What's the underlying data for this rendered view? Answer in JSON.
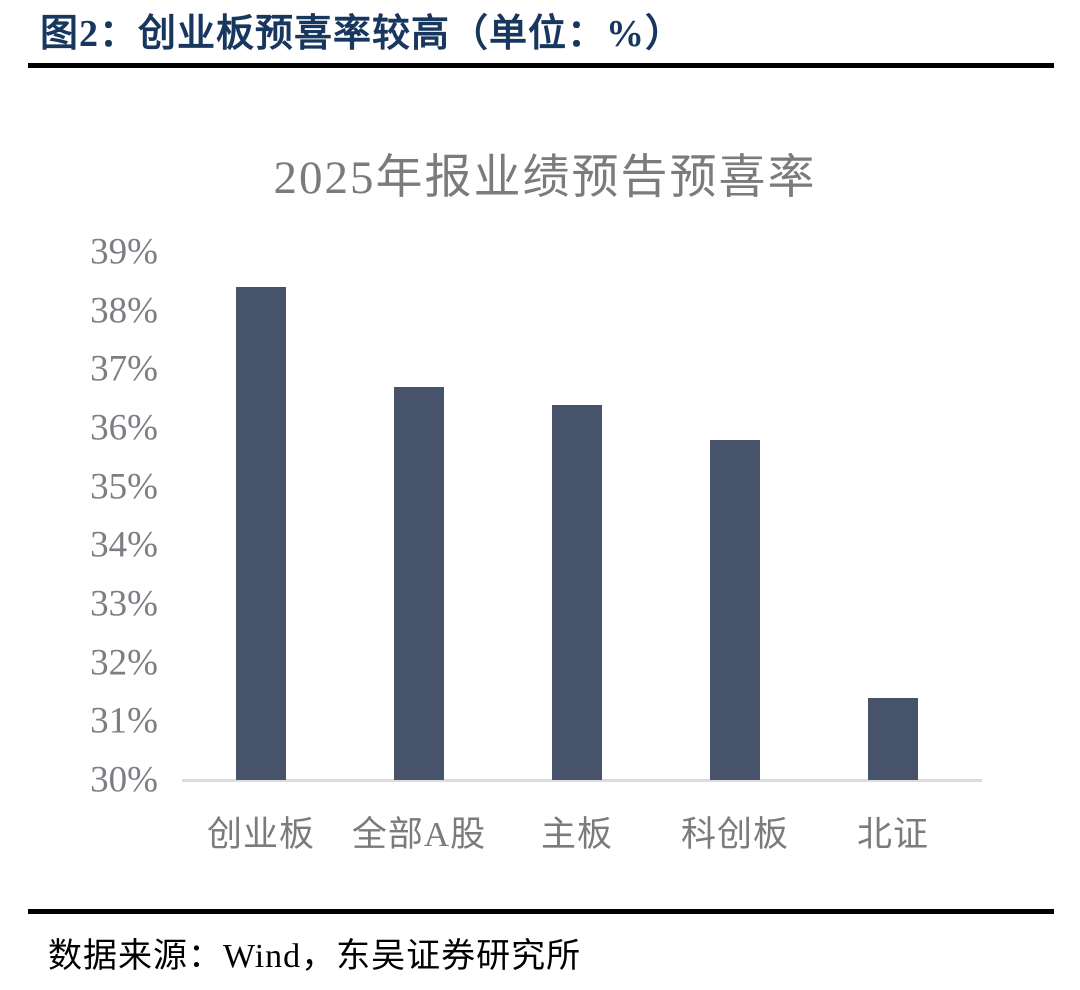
{
  "header": {
    "title": "图2：创业板预喜率较高（单位：%）"
  },
  "chart_data": {
    "type": "bar",
    "title": "2025年报业绩预告预喜率",
    "categories": [
      "创业板",
      "全部A股",
      "主板",
      "科创板",
      "北证"
    ],
    "values": [
      38.4,
      36.7,
      36.4,
      35.8,
      31.4
    ],
    "unit": "%",
    "xlabel": "",
    "ylabel": "",
    "ylim": [
      30,
      39
    ],
    "ytick_labels": [
      "39%",
      "38%",
      "37%",
      "36%",
      "35%",
      "34%",
      "33%",
      "32%",
      "31%",
      "30%"
    ],
    "grid": false,
    "legend_position": "none",
    "bar_color": "#46536A",
    "axis_line_color": "#DCDCDC",
    "tick_label_color": "#7C7E83",
    "title_color": "#7B7B7B",
    "header_color": "#17375E"
  },
  "footer": {
    "source": "数据来源：Wind，东吴证券研究所"
  }
}
